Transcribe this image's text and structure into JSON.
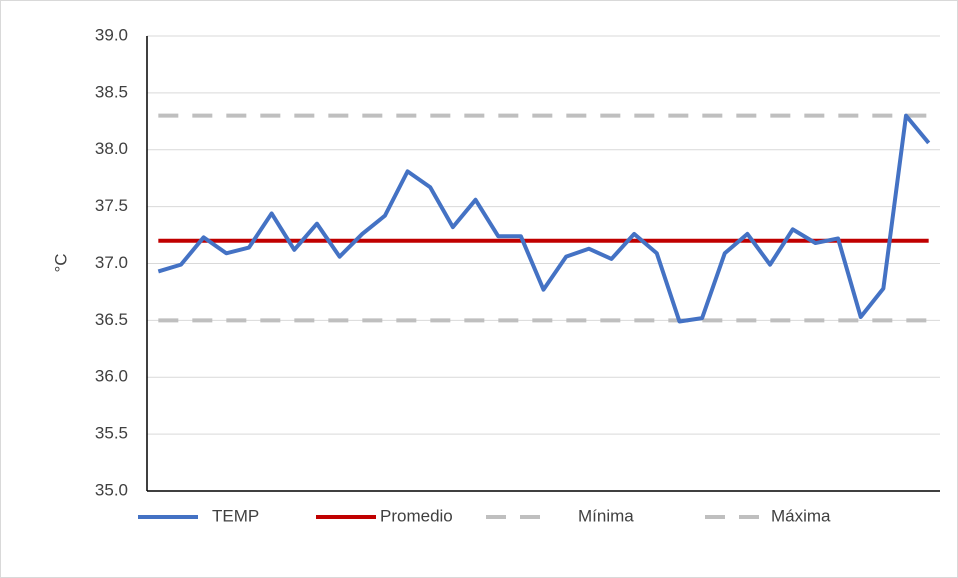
{
  "chart_data": {
    "type": "line",
    "y_label": "°C",
    "categories": [
      null,
      null,
      null,
      null,
      null,
      null,
      null,
      null,
      null,
      null,
      null,
      null,
      null,
      null,
      null,
      null,
      null,
      null,
      null,
      null,
      null,
      null,
      null,
      null,
      null,
      null,
      null,
      null,
      null,
      null,
      null,
      null,
      null,
      null,
      null
    ],
    "series": [
      {
        "name": "TEMP",
        "color": "#4472c4",
        "dash": false,
        "values": [
          36.93,
          36.99,
          37.23,
          37.09,
          37.14,
          37.44,
          37.12,
          37.35,
          37.06,
          37.26,
          37.42,
          37.81,
          37.67,
          37.32,
          37.56,
          37.24,
          37.24,
          36.77,
          37.06,
          37.13,
          37.04,
          37.26,
          37.09,
          36.49,
          36.52,
          37.09,
          37.26,
          36.99,
          37.3,
          37.18,
          37.22,
          36.53,
          36.78,
          38.3,
          38.06
        ]
      },
      {
        "name": "Promedio",
        "color": "#c00000",
        "dash": false,
        "values": [
          37.2,
          37.2,
          37.2,
          37.2,
          37.2,
          37.2,
          37.2,
          37.2,
          37.2,
          37.2,
          37.2,
          37.2,
          37.2,
          37.2,
          37.2,
          37.2,
          37.2,
          37.2,
          37.2,
          37.2,
          37.2,
          37.2,
          37.2,
          37.2,
          37.2,
          37.2,
          37.2,
          37.2,
          37.2,
          37.2,
          37.2,
          37.2,
          37.2,
          37.2,
          37.2
        ]
      },
      {
        "name": "Mínima",
        "color": "#bfbfbf",
        "dash": true,
        "values": [
          36.5,
          36.5,
          36.5,
          36.5,
          36.5,
          36.5,
          36.5,
          36.5,
          36.5,
          36.5,
          36.5,
          36.5,
          36.5,
          36.5,
          36.5,
          36.5,
          36.5,
          36.5,
          36.5,
          36.5,
          36.5,
          36.5,
          36.5,
          36.5,
          36.5,
          36.5,
          36.5,
          36.5,
          36.5,
          36.5,
          36.5,
          36.5,
          36.5,
          36.5,
          36.5
        ]
      },
      {
        "name": "Máxima",
        "color": "#bfbfbf",
        "dash": true,
        "values": [
          38.3,
          38.3,
          38.3,
          38.3,
          38.3,
          38.3,
          38.3,
          38.3,
          38.3,
          38.3,
          38.3,
          38.3,
          38.3,
          38.3,
          38.3,
          38.3,
          38.3,
          38.3,
          38.3,
          38.3,
          38.3,
          38.3,
          38.3,
          38.3,
          38.3,
          38.3,
          38.3,
          38.3,
          38.3,
          38.3,
          38.3,
          38.3,
          38.3,
          38.3,
          38.3
        ]
      }
    ],
    "ylim": [
      35,
      39
    ],
    "yticks": [
      {
        "value": 35,
        "label": "35.0"
      },
      {
        "value": 35.5,
        "label": "35.5"
      },
      {
        "value": 36,
        "label": "36.0"
      },
      {
        "value": 36.5,
        "label": "36.5"
      },
      {
        "value": 37,
        "label": "37.0"
      },
      {
        "value": 37.5,
        "label": "37.5"
      },
      {
        "value": 38,
        "label": "38.0"
      },
      {
        "value": 38.5,
        "label": "38.5"
      },
      {
        "value": 39,
        "label": "39.0"
      }
    ],
    "grid": true,
    "legend": "bottom"
  }
}
